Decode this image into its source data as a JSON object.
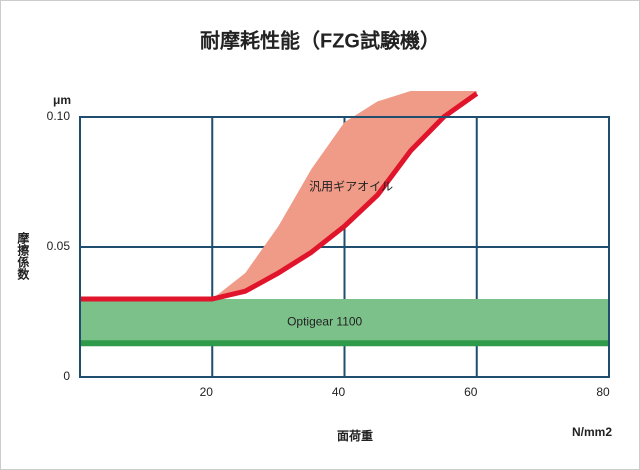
{
  "chart_data": {
    "type": "band",
    "title": "耐摩耗性能（FZG試験機）",
    "x_label": "面荷重",
    "x_unit": "N/mm2",
    "y_label": "摩擦係数",
    "y_unit": "μm",
    "xlim": [
      0,
      80
    ],
    "xticks": [
      20,
      40,
      60,
      80
    ],
    "ylim": [
      0,
      0.1
    ],
    "yticks": [
      0,
      0.05,
      {
        "value": 0.1,
        "label": "0.10"
      }
    ],
    "grid": true,
    "series": [
      {
        "name": "Optigear 1100",
        "color": "#2e9a4a",
        "fill": "#7cc08a",
        "x": [
          0,
          80
        ],
        "values": [
          0.013,
          0.013
        ],
        "upper": [
          0.03,
          0.03
        ]
      },
      {
        "name": "汎用ギアオイル",
        "color": "#e0142a",
        "fill": "#f09a88",
        "x": [
          0,
          20,
          25,
          30,
          35,
          40,
          45,
          50,
          55,
          60
        ],
        "values": [
          0.03,
          0.03,
          0.033,
          0.04,
          0.048,
          0.058,
          0.07,
          0.087,
          0.1,
          0.109
        ],
        "upper": [
          0.03,
          0.03,
          0.04,
          0.058,
          0.08,
          0.098,
          0.106,
          0.11,
          0.11,
          0.11
        ]
      }
    ]
  }
}
